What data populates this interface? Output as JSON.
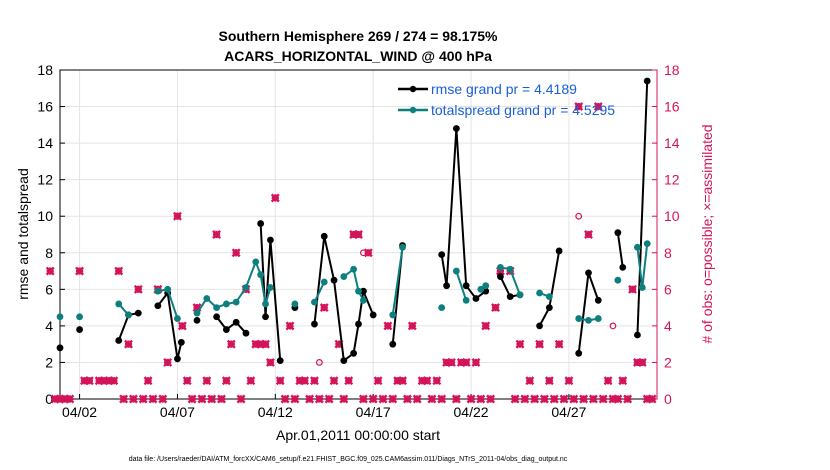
{
  "title_line1": "Southern Hemisphere 269 / 274 = 98.175%",
  "title_line2": "ACARS_HORIZONTAL_WIND @ 400 hPa",
  "footer": "data file: /Users/raeder/DAI/ATM_forcXX/CAM6_setup/f.e21.FHIST_BGC.f09_025.CAM6assim.011/Diags_NTrS_2011-04/obs_diag_output.nc",
  "colors": {
    "rmse": "#000000",
    "spread": "#0e7f7f",
    "obs": "#d4145a",
    "legend_text": "#1a5fd6",
    "grid": "#e4e4e4"
  },
  "chart_data": {
    "type": "line",
    "xlabel": "Apr.01,2011 00:00:00 start",
    "ylabel": "rmse and totalspread",
    "y2label": "# of obs: o=possible; ×=assimilated",
    "xlim": [
      0.5,
      31.0
    ],
    "ylim": [
      0,
      18
    ],
    "y2lim": [
      0,
      18
    ],
    "x_ticks": [
      1.5,
      6.5,
      11.5,
      16.5,
      21.5,
      26.5
    ],
    "x_tick_labels": [
      "04/02",
      "04/07",
      "04/12",
      "04/17",
      "04/22",
      "04/27"
    ],
    "y_ticks": [
      0,
      2,
      4,
      6,
      8,
      10,
      12,
      14,
      16,
      18
    ],
    "y2_ticks": [
      0,
      2,
      4,
      6,
      8,
      10,
      12,
      14,
      16,
      18
    ],
    "grid": true,
    "legend_position": "top-right",
    "legend": [
      {
        "label": "rmse grand pr = 4.4189"
      },
      {
        "label": "totalspread grand pr = 4.5295"
      }
    ],
    "rmse": [
      [
        0.5,
        2.8
      ],
      [
        1.5,
        3.8
      ],
      [
        3.5,
        3.2
      ],
      [
        4.0,
        4.6
      ],
      [
        4.5,
        4.7
      ],
      [
        5.5,
        5.1
      ],
      [
        6.0,
        5.8
      ],
      [
        6.5,
        2.2
      ],
      [
        6.7,
        3.1
      ],
      [
        7.5,
        4.3
      ],
      [
        8.5,
        4.5
      ],
      [
        9.0,
        3.8
      ],
      [
        9.5,
        4.2
      ],
      [
        10.0,
        3.6
      ],
      [
        10.75,
        9.6
      ],
      [
        11.0,
        4.5
      ],
      [
        11.25,
        8.7
      ],
      [
        11.75,
        2.1
      ],
      [
        12.5,
        5.0
      ],
      [
        13.5,
        4.1
      ],
      [
        14.0,
        8.9
      ],
      [
        14.5,
        6.5
      ],
      [
        15.0,
        2.1
      ],
      [
        15.5,
        2.5
      ],
      [
        15.75,
        4.1
      ],
      [
        16.0,
        5.9
      ],
      [
        16.5,
        4.6
      ],
      [
        17.5,
        3.0
      ],
      [
        18.0,
        8.4
      ],
      [
        20.0,
        7.9
      ],
      [
        20.25,
        6.2
      ],
      [
        20.75,
        14.8
      ],
      [
        21.25,
        6.2
      ],
      [
        21.75,
        5.5
      ],
      [
        22.25,
        5.9
      ],
      [
        23.0,
        6.7
      ],
      [
        23.5,
        5.6
      ],
      [
        24.0,
        5.7
      ],
      [
        25.0,
        4.0
      ],
      [
        25.5,
        5.0
      ],
      [
        26.0,
        8.1
      ],
      [
        27.0,
        2.5
      ],
      [
        27.5,
        6.9
      ],
      [
        28.0,
        5.4
      ],
      [
        29.0,
        9.1
      ],
      [
        29.25,
        7.2
      ],
      [
        30.0,
        3.5
      ],
      [
        30.5,
        17.4
      ]
    ],
    "spread": [
      [
        0.5,
        4.5
      ],
      [
        1.5,
        4.5
      ],
      [
        3.5,
        5.2
      ],
      [
        4.0,
        4.6
      ],
      [
        5.5,
        5.9
      ],
      [
        6.0,
        6.0
      ],
      [
        6.5,
        4.4
      ],
      [
        7.5,
        4.7
      ],
      [
        8.0,
        5.5
      ],
      [
        8.5,
        5.0
      ],
      [
        9.0,
        5.2
      ],
      [
        9.5,
        5.3
      ],
      [
        10.0,
        6.1
      ],
      [
        10.5,
        7.5
      ],
      [
        10.75,
        6.8
      ],
      [
        11.0,
        5.2
      ],
      [
        11.25,
        6.1
      ],
      [
        12.5,
        5.2
      ],
      [
        13.5,
        5.3
      ],
      [
        14.0,
        6.4
      ],
      [
        15.0,
        6.7
      ],
      [
        15.5,
        7.1
      ],
      [
        15.75,
        5.9
      ],
      [
        16.0,
        5.4
      ],
      [
        17.5,
        4.6
      ],
      [
        18.0,
        8.3
      ],
      [
        20.0,
        5.0
      ],
      [
        20.75,
        7.0
      ],
      [
        21.25,
        5.4
      ],
      [
        22.0,
        6.0
      ],
      [
        22.25,
        6.2
      ],
      [
        23.0,
        7.2
      ],
      [
        23.5,
        7.1
      ],
      [
        24.0,
        5.7
      ],
      [
        25.0,
        5.8
      ],
      [
        25.5,
        5.6
      ],
      [
        27.0,
        4.4
      ],
      [
        27.5,
        4.3
      ],
      [
        28.0,
        4.4
      ],
      [
        29.0,
        6.5
      ],
      [
        30.0,
        8.3
      ],
      [
        30.25,
        6.1
      ],
      [
        30.5,
        8.5
      ]
    ],
    "obs_assimilated": [
      [
        0.0,
        7
      ],
      [
        0.25,
        0
      ],
      [
        0.5,
        0
      ],
      [
        0.75,
        0
      ],
      [
        1.0,
        0
      ],
      [
        1.5,
        7
      ],
      [
        1.75,
        1
      ],
      [
        2.0,
        1
      ],
      [
        2.5,
        1
      ],
      [
        2.75,
        1
      ],
      [
        3.0,
        1
      ],
      [
        3.25,
        1
      ],
      [
        3.5,
        7
      ],
      [
        3.75,
        0
      ],
      [
        4.0,
        3
      ],
      [
        4.25,
        0
      ],
      [
        4.5,
        6
      ],
      [
        4.75,
        0
      ],
      [
        5.0,
        1
      ],
      [
        5.25,
        0
      ],
      [
        5.5,
        6
      ],
      [
        5.75,
        0
      ],
      [
        6.0,
        2
      ],
      [
        6.5,
        10
      ],
      [
        6.75,
        4
      ],
      [
        7.0,
        1
      ],
      [
        7.25,
        0
      ],
      [
        7.5,
        5
      ],
      [
        7.75,
        0
      ],
      [
        8.0,
        1
      ],
      [
        8.25,
        0
      ],
      [
        8.5,
        9
      ],
      [
        8.75,
        0
      ],
      [
        9.0,
        1
      ],
      [
        9.25,
        3
      ],
      [
        9.5,
        8
      ],
      [
        9.75,
        0
      ],
      [
        10.0,
        6
      ],
      [
        10.25,
        1
      ],
      [
        10.5,
        3
      ],
      [
        10.75,
        3
      ],
      [
        11.0,
        3
      ],
      [
        11.25,
        2
      ],
      [
        11.5,
        11
      ],
      [
        11.75,
        1
      ],
      [
        12.0,
        0
      ],
      [
        12.25,
        4
      ],
      [
        12.5,
        0
      ],
      [
        12.75,
        1
      ],
      [
        13.0,
        1
      ],
      [
        13.25,
        0
      ],
      [
        13.5,
        1
      ],
      [
        13.75,
        0
      ],
      [
        14.0,
        5
      ],
      [
        14.25,
        0
      ],
      [
        14.5,
        1
      ],
      [
        14.75,
        3
      ],
      [
        15.0,
        0
      ],
      [
        15.25,
        1
      ],
      [
        15.5,
        9
      ],
      [
        15.75,
        9
      ],
      [
        16.0,
        0
      ],
      [
        16.25,
        8
      ],
      [
        16.5,
        0
      ],
      [
        16.75,
        1
      ],
      [
        17.0,
        0
      ],
      [
        17.25,
        4
      ],
      [
        17.5,
        0
      ],
      [
        17.75,
        1
      ],
      [
        18.0,
        1
      ],
      [
        18.25,
        0
      ],
      [
        18.5,
        4
      ],
      [
        18.75,
        0
      ],
      [
        19.0,
        1
      ],
      [
        19.25,
        1
      ],
      [
        19.5,
        0
      ],
      [
        19.75,
        1
      ],
      [
        20.0,
        0
      ],
      [
        20.25,
        2
      ],
      [
        20.5,
        2
      ],
      [
        20.75,
        0
      ],
      [
        21.0,
        2
      ],
      [
        21.25,
        2
      ],
      [
        21.5,
        0
      ],
      [
        21.75,
        2
      ],
      [
        22.0,
        0
      ],
      [
        22.25,
        4
      ],
      [
        22.5,
        0
      ],
      [
        22.75,
        5
      ],
      [
        23.0,
        7
      ],
      [
        23.5,
        7
      ],
      [
        23.75,
        0
      ],
      [
        24.0,
        3
      ],
      [
        24.25,
        0
      ],
      [
        24.5,
        1
      ],
      [
        24.75,
        0
      ],
      [
        25.0,
        3
      ],
      [
        25.25,
        0
      ],
      [
        25.5,
        1
      ],
      [
        25.75,
        0
      ],
      [
        26.0,
        3
      ],
      [
        26.25,
        0
      ],
      [
        26.5,
        1
      ],
      [
        26.75,
        0
      ],
      [
        27.0,
        16
      ],
      [
        27.25,
        0
      ],
      [
        27.5,
        9
      ],
      [
        27.75,
        0
      ],
      [
        28.0,
        16
      ],
      [
        28.25,
        0
      ],
      [
        28.5,
        1
      ],
      [
        28.75,
        0
      ],
      [
        29.0,
        0
      ],
      [
        29.25,
        1
      ],
      [
        29.5,
        0
      ],
      [
        29.75,
        6
      ],
      [
        30.0,
        2
      ],
      [
        30.25,
        2
      ],
      [
        30.5,
        0
      ],
      [
        30.75,
        0
      ]
    ],
    "obs_possible": [
      [
        13.75,
        2
      ],
      [
        27.0,
        10
      ],
      [
        28.75,
        4
      ],
      [
        11.0,
        3
      ],
      [
        16.0,
        8
      ]
    ]
  }
}
